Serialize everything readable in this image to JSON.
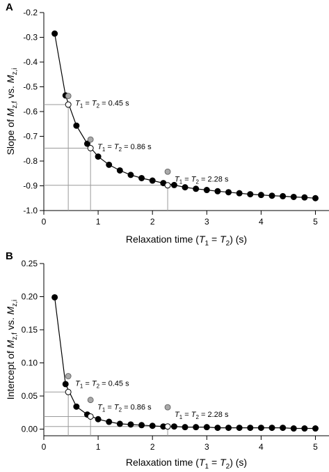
{
  "chart_data": [
    {
      "type": "line",
      "panel_label": "A",
      "xlabel": {
        "main": "Relaxation time (",
        "t1": "T",
        "s1": "1",
        "eq": " = ",
        "t2": "T",
        "s2": "2",
        "tail": ") (s)"
      },
      "ylabel": {
        "pre": "Slope of ",
        "m1": "M",
        "sub1": "z,f",
        "mid": " vs. ",
        "m2": "M",
        "sub2": "z,i"
      },
      "xlim": [
        0,
        5.25
      ],
      "ylim": [
        -1.0,
        -0.2
      ],
      "xticks": [
        0,
        1,
        2,
        3,
        4,
        5
      ],
      "xtick_labels": [
        "0",
        "1",
        "2",
        "3",
        "4",
        "5"
      ],
      "yticks": [
        -0.2,
        -0.3,
        -0.4,
        -0.5,
        -0.6,
        -0.7,
        -0.8,
        -0.9,
        -1.0
      ],
      "ytick_labels": [
        "-0.2",
        "-0.3",
        "-0.4",
        "-0.5",
        "-0.6",
        "-0.7",
        "-0.8",
        "-0.9",
        "-1.0"
      ],
      "grid": false,
      "series": [
        {
          "marker": "filled-black",
          "x": [
            0.2,
            0.4,
            0.6,
            0.8,
            1.0,
            1.2,
            1.4,
            1.6,
            1.8,
            2.0,
            2.2,
            2.4,
            2.6,
            2.8,
            3.0,
            3.2,
            3.4,
            3.6,
            3.8,
            4.0,
            4.2,
            4.4,
            4.6,
            4.8,
            5.0
          ],
          "y": [
            -0.285,
            -0.535,
            -0.657,
            -0.73,
            -0.782,
            -0.815,
            -0.838,
            -0.856,
            -0.869,
            -0.879,
            -0.889,
            -0.897,
            -0.906,
            -0.912,
            -0.917,
            -0.922,
            -0.926,
            -0.93,
            -0.934,
            -0.937,
            -0.94,
            -0.942,
            -0.945,
            -0.947,
            -0.95
          ]
        }
      ],
      "open_points": [
        {
          "x": 0.45,
          "y": -0.572,
          "label": {
            "t1": "T",
            "s1": "1",
            "eq": " = ",
            "t2": "T",
            "s2": "2",
            "val": " = 0.45 s"
          }
        },
        {
          "x": 0.86,
          "y": -0.748,
          "label": {
            "t1": "T",
            "s1": "1",
            "eq": " = ",
            "t2": "T",
            "s2": "2",
            "val": " = 0.86 s"
          }
        },
        {
          "x": 2.28,
          "y": -0.898,
          "label": {
            "t1": "T",
            "s1": "1",
            "eq": " = ",
            "t2": "T",
            "s2": "2",
            "val": " = 2.28 s"
          }
        }
      ],
      "gray_points": [
        {
          "x": 0.45,
          "y": -0.537
        },
        {
          "x": 0.86,
          "y": -0.713
        },
        {
          "x": 2.28,
          "y": -0.843
        }
      ]
    },
    {
      "type": "line",
      "panel_label": "B",
      "xlabel": {
        "main": "Relaxation time (",
        "t1": "T",
        "s1": "1",
        "eq": " = ",
        "t2": "T",
        "s2": "2",
        "tail": ") (s)"
      },
      "ylabel": {
        "pre": "Intercept of ",
        "m1": "M",
        "sub1": "z,f",
        "mid": " vs. ",
        "m2": "M",
        "sub2": "z,i"
      },
      "xlim": [
        0,
        5.25
      ],
      "ylim": [
        -0.01,
        0.25
      ],
      "xticks": [
        0,
        1,
        2,
        3,
        4,
        5
      ],
      "xtick_labels": [
        "0",
        "1",
        "2",
        "3",
        "4",
        "5"
      ],
      "yticks": [
        0.0,
        0.05,
        0.1,
        0.15,
        0.2,
        0.25
      ],
      "ytick_labels": [
        "0.00",
        "0.05",
        "0.10",
        "0.15",
        "0.20",
        "0.25"
      ],
      "grid": false,
      "series": [
        {
          "marker": "filled-black",
          "x": [
            0.2,
            0.4,
            0.6,
            0.8,
            1.0,
            1.2,
            1.4,
            1.6,
            1.8,
            2.0,
            2.2,
            2.4,
            2.6,
            2.8,
            3.0,
            3.2,
            3.4,
            3.6,
            3.8,
            4.0,
            4.2,
            4.4,
            4.6,
            4.8,
            5.0
          ],
          "y": [
            0.199,
            0.068,
            0.034,
            0.022,
            0.015,
            0.011,
            0.008,
            0.007,
            0.006,
            0.005,
            0.004,
            0.004,
            0.003,
            0.003,
            0.003,
            0.002,
            0.002,
            0.002,
            0.002,
            0.002,
            0.002,
            0.002,
            0.001,
            0.001,
            0.001
          ]
        }
      ],
      "open_points": [
        {
          "x": 0.45,
          "y": 0.056,
          "label": {
            "t1": "T",
            "s1": "1",
            "eq": " = ",
            "t2": "T",
            "s2": "2",
            "val": " = 0.45 s"
          }
        },
        {
          "x": 0.86,
          "y": 0.019,
          "label": {
            "t1": "T",
            "s1": "1",
            "eq": " = ",
            "t2": "T",
            "s2": "2",
            "val": " = 0.86 s"
          }
        },
        {
          "x": 2.28,
          "y": 0.004,
          "label": {
            "t1": "T",
            "s1": "1",
            "eq": " = ",
            "t2": "T",
            "s2": "2",
            "val": " = 2.28 s"
          }
        }
      ],
      "gray_points": [
        {
          "x": 0.45,
          "y": 0.08
        },
        {
          "x": 0.86,
          "y": 0.044
        },
        {
          "x": 2.28,
          "y": 0.033
        }
      ]
    }
  ],
  "colors": {
    "filled_marker": "#000000",
    "open_marker_fill": "#ffffff",
    "gray_marker": "#a9a9a9",
    "guide_line": "#9a9a9a",
    "line": "#000000"
  }
}
